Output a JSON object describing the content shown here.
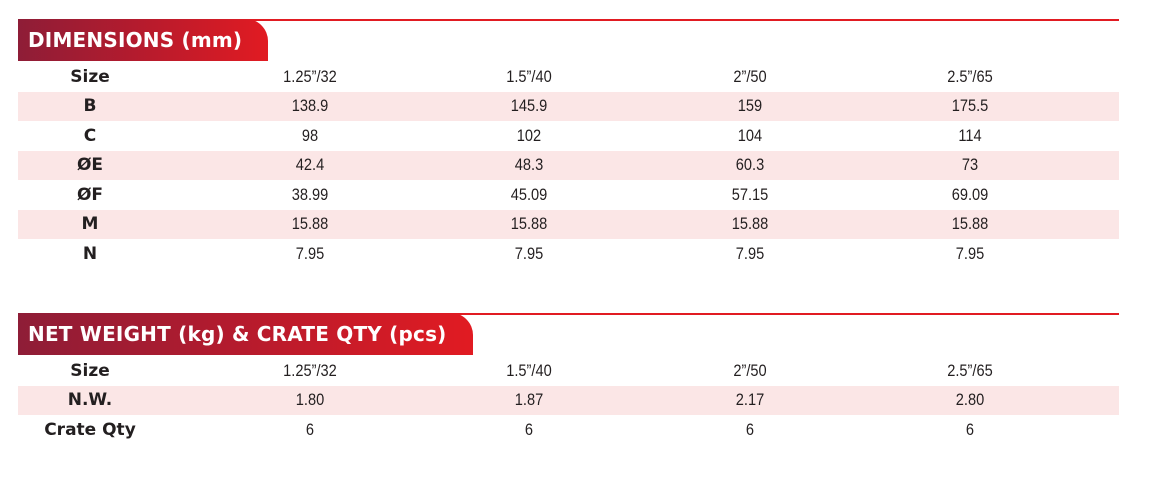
{
  "dimensions": {
    "title": "DIMENSIONS (mm)",
    "rows": [
      {
        "label": "Size",
        "values": [
          "1.25”/32",
          "1.5”/40",
          "2”/50",
          "2.5”/65"
        ]
      },
      {
        "label": "B",
        "values": [
          "138.9",
          "145.9",
          "159",
          "175.5"
        ]
      },
      {
        "label": "C",
        "values": [
          "98",
          "102",
          "104",
          "114"
        ]
      },
      {
        "label": "ØE",
        "values": [
          "42.4",
          "48.3",
          "60.3",
          "73"
        ]
      },
      {
        "label": "ØF",
        "values": [
          "38.99",
          "45.09",
          "57.15",
          "69.09"
        ]
      },
      {
        "label": "M",
        "values": [
          "15.88",
          "15.88",
          "15.88",
          "15.88"
        ]
      },
      {
        "label": "N",
        "values": [
          "7.95",
          "7.95",
          "7.95",
          "7.95"
        ]
      }
    ]
  },
  "weight": {
    "title": "NET WEIGHT (kg) & CRATE QTY (pcs)",
    "rows": [
      {
        "label": "Size",
        "values": [
          "1.25”/32",
          "1.5”/40",
          "2”/50",
          "2.5”/65"
        ]
      },
      {
        "label": "N.W.",
        "values": [
          "1.80",
          "1.87",
          "2.17",
          "2.80"
        ]
      },
      {
        "label": "Crate Qty",
        "values": [
          "6",
          "6",
          "6",
          "6"
        ]
      }
    ]
  },
  "colors": {
    "accent": "#e11b22",
    "header_dark": "#8e1d37",
    "row_shade": "#fbe6e6",
    "text": "#231f20"
  }
}
